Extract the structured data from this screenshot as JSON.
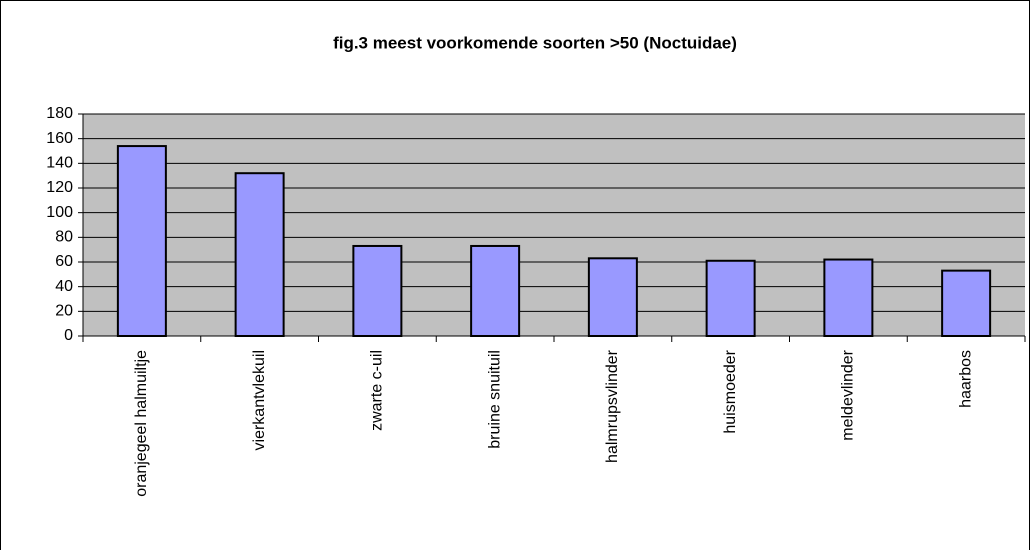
{
  "chart_data": {
    "type": "bar",
    "title": "fig.3 meest voorkomende soorten >50 (Noctuidae)",
    "categories": [
      "oranjegeel halmuiltje",
      "vierkantvlekuil",
      "zwarte c-uil",
      "bruine snuituil",
      "halmrupsvlinder",
      "huismoeder",
      "meldevlinder",
      "haarbos"
    ],
    "values": [
      154,
      132,
      73,
      73,
      63,
      61,
      62,
      53
    ],
    "color": "#9999ff",
    "ylim": [
      0,
      180
    ],
    "yticks": [
      0,
      20,
      40,
      60,
      80,
      100,
      120,
      140,
      160,
      180
    ],
    "grid": true
  }
}
